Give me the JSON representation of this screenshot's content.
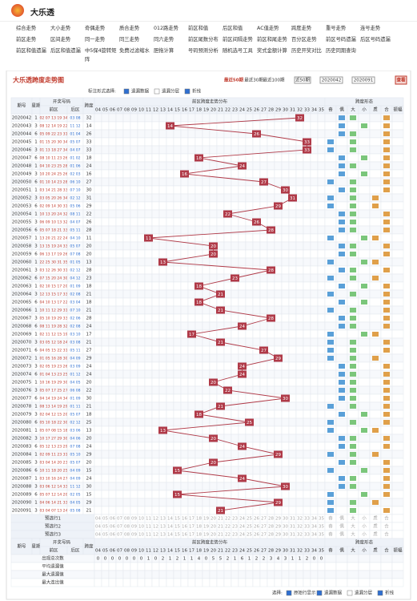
{
  "header": {
    "site": "大乐透"
  },
  "nav": [
    "综合走势",
    "大小走势",
    "奇偶走势",
    "质合走势",
    "012路走势",
    "前区和值",
    "后区和值",
    "AC值走势",
    "跨度走势",
    "重号走势",
    "连号走势",
    "前区走势",
    "区间走势",
    "同一走势",
    "同三走势",
    "同六走势",
    "前区尾数分布",
    "前区间隔走势",
    "前区和尾走势",
    "百分区走势",
    "前区号码遗漏",
    "后区号码遗漏",
    "前区和值遗漏",
    "后区和值遗漏",
    "中5保4旋转矩阵",
    "免费过滤缩水",
    "胆拖计算",
    "号码预测分析",
    "随机选号工具",
    "奖式金额计算",
    "历史开奖对比",
    "历史同期查询"
  ],
  "panel": {
    "title": "大乐透跨度走势图",
    "ranges": [
      "最近50期",
      "最近30期",
      "最近100期"
    ],
    "select": "近50期",
    "from": "2020042",
    "to": "2020091",
    "button": "查看",
    "mark_label": "标注形式选择:",
    "options": [
      {
        "label": "遗漏数据",
        "checked": true
      },
      {
        "label": "遗漏分层",
        "checked": false
      },
      {
        "label": "折线",
        "checked": true
      }
    ]
  },
  "table": {
    "head": {
      "issue": "期号",
      "week": "星期",
      "numbers": "开奖号码",
      "front": "前区",
      "back": "后区",
      "span": "跨度",
      "dist": "前区跨度走势分布",
      "form": "跨度形态"
    },
    "columns": [
      "04",
      "05",
      "06",
      "07",
      "08",
      "09",
      "10",
      "11",
      "12",
      "13",
      "14",
      "15",
      "16",
      "17",
      "18",
      "19",
      "20",
      "21",
      "22",
      "23",
      "24",
      "25",
      "26",
      "27",
      "28",
      "29",
      "30",
      "31",
      "32",
      "33",
      "34",
      "35"
    ],
    "form_columns": [
      "奇",
      "偶",
      "大",
      "小",
      "质",
      "合",
      "振幅"
    ],
    "rows": [
      {
        "issue": "2020042",
        "week": "1",
        "front": "02 07 13 19 34",
        "back": "03 08",
        "span": 32
      },
      {
        "issue": "2020043",
        "week": "3",
        "front": "08 12 14 19 22",
        "back": "11 12",
        "span": 14
      },
      {
        "issue": "2020044",
        "week": "6",
        "front": "05 09 22 23 31",
        "back": "01 04",
        "span": 26
      },
      {
        "issue": "2020045",
        "week": "1",
        "front": "01 15 20 30 34",
        "back": "05 07",
        "span": 33
      },
      {
        "issue": "2020046",
        "week": "3",
        "front": "01 13 18 27 34",
        "back": "04 07",
        "span": 33
      },
      {
        "issue": "2020047",
        "week": "6",
        "front": "08 10 11 23 26",
        "back": "01 02",
        "span": 18
      },
      {
        "issue": "2020048",
        "week": "1",
        "front": "04 10 23 25 28",
        "back": "01 06",
        "span": 24
      },
      {
        "issue": "2020049",
        "week": "3",
        "front": "10 20 24 25 26",
        "back": "02 03",
        "span": 16
      },
      {
        "issue": "2020050",
        "week": "6",
        "front": "01 10 14 23 28",
        "back": "06 10",
        "span": 27
      },
      {
        "issue": "2020051",
        "week": "1",
        "front": "03 14 21 28 33",
        "back": "07 10",
        "span": 30
      },
      {
        "issue": "2020052",
        "week": "3",
        "front": "03 05 20 26 34",
        "back": "02 12",
        "span": 31
      },
      {
        "issue": "2020053",
        "week": "6",
        "front": "02 09 14 30 31",
        "back": "05 06",
        "span": 29
      },
      {
        "issue": "2020054",
        "week": "1",
        "front": "10 13 20 24 32",
        "back": "08 11",
        "span": 22
      },
      {
        "issue": "2020055",
        "week": "3",
        "front": "06 09 10 13 32",
        "back": "04 07",
        "span": 26
      },
      {
        "issue": "2020056",
        "week": "6",
        "front": "05 07 18 21 33",
        "back": "05 11",
        "span": 28
      },
      {
        "issue": "2020057",
        "week": "1",
        "front": "13 20 21 22 24",
        "back": "04 10",
        "span": 11
      },
      {
        "issue": "2020058",
        "week": "3",
        "front": "13 15 19 24 33",
        "back": "05 07",
        "span": 20
      },
      {
        "issue": "2020059",
        "week": "6",
        "front": "06 13 17 19 26",
        "back": "07 08",
        "span": 20
      },
      {
        "issue": "2020060",
        "week": "1",
        "front": "22 25 30 31 35",
        "back": "01 05",
        "span": 13
      },
      {
        "issue": "2020061",
        "week": "3",
        "front": "03 12 26 30 31",
        "back": "02 12",
        "span": 28
      },
      {
        "issue": "2020062",
        "week": "6",
        "front": "07 15 20 24 30",
        "back": "04 12",
        "span": 23
      },
      {
        "issue": "2020063",
        "week": "1",
        "front": "02 10 15 17 20",
        "back": "01 09",
        "span": 18
      },
      {
        "issue": "2020064",
        "week": "3",
        "front": "12 13 15 17 33",
        "back": "02 08",
        "span": 21
      },
      {
        "issue": "2020065",
        "week": "6",
        "front": "04 10 13 17 22",
        "back": "03 04",
        "span": 18
      },
      {
        "issue": "2020066",
        "week": "1",
        "front": "10 11 12 29 31",
        "back": "07 10",
        "span": 21
      },
      {
        "issue": "2020067",
        "week": "3",
        "front": "05 10 19 29 33",
        "back": "02 06",
        "span": 28
      },
      {
        "issue": "2020068",
        "week": "6",
        "front": "08 11 19 28 32",
        "back": "02 08",
        "span": 24
      },
      {
        "issue": "2020069",
        "week": "1",
        "front": "02 11 12 15 19",
        "back": "03 10",
        "span": 17
      },
      {
        "issue": "2020070",
        "week": "3",
        "front": "03 05 12 18 24",
        "back": "03 08",
        "span": 21
      },
      {
        "issue": "2020071",
        "week": "6",
        "front": "04 05 15 22 31",
        "back": "05 11",
        "span": 27
      },
      {
        "issue": "2020072",
        "week": "1",
        "front": "01 05 16 28 30",
        "back": "04 09",
        "span": 29
      },
      {
        "issue": "2020073",
        "week": "3",
        "front": "02 05 19 23 26",
        "back": "03 09",
        "span": 24
      },
      {
        "issue": "2020074",
        "week": "6",
        "front": "01 04 13 23 25",
        "back": "01 12",
        "span": 24
      },
      {
        "issue": "2020075",
        "week": "1",
        "front": "10 16 19 29 30",
        "back": "04 05",
        "span": 20
      },
      {
        "issue": "2020076",
        "week": "3",
        "front": "05 07 17 25 27",
        "back": "06 08",
        "span": 22
      },
      {
        "issue": "2020077",
        "week": "6",
        "front": "04 14 19 24 34",
        "back": "01 09",
        "span": 30
      },
      {
        "issue": "2020078",
        "week": "1",
        "front": "08 13 14 19 29",
        "back": "01 11",
        "span": 21
      },
      {
        "issue": "2020079",
        "week": "3",
        "front": "02 04 12 15 20",
        "back": "05 07",
        "span": 18
      },
      {
        "issue": "2020080",
        "week": "6",
        "front": "05 10 18 22 30",
        "back": "02 12",
        "span": 25
      },
      {
        "issue": "2020081",
        "week": "1",
        "front": "05 07 08 15 18",
        "back": "03 06",
        "span": 13
      },
      {
        "issue": "2020082",
        "week": "3",
        "front": "10 17 27 29 30",
        "back": "04 06",
        "span": 20
      },
      {
        "issue": "2020083",
        "week": "6",
        "front": "05 12 13 23 29",
        "back": "07 08",
        "span": 24
      },
      {
        "issue": "2020084",
        "week": "1",
        "front": "02 09 11 23 31",
        "back": "05 10",
        "span": 29
      },
      {
        "issue": "2020085",
        "week": "3",
        "front": "03 04 14 20 23",
        "back": "05 07",
        "span": 20
      },
      {
        "issue": "2020086",
        "week": "6",
        "front": "10 11 18 20 25",
        "back": "04 09",
        "span": 15
      },
      {
        "issue": "2020087",
        "week": "1",
        "front": "03 10 16 24 27",
        "back": "04 09",
        "span": 24
      },
      {
        "issue": "2020088",
        "week": "3",
        "front": "03 06 12 14 33",
        "back": "11 12",
        "span": 30
      },
      {
        "issue": "2020089",
        "week": "6",
        "front": "05 07 12 14 20",
        "back": "02 05",
        "span": 15
      },
      {
        "issue": "2020090",
        "week": "1",
        "front": "04 06 14 21 33",
        "back": "04 05",
        "span": 29
      },
      {
        "issue": "2020091",
        "week": "3",
        "front": "03 04 07 13 24",
        "back": "05 08",
        "span": 21
      }
    ],
    "preselect": [
      "预选行1",
      "预选行2",
      "预选行3"
    ],
    "stats": {
      "labels": [
        "出现总次数",
        "平均遗漏值",
        "最大遗漏值",
        "最大连出值"
      ],
      "counts": [
        0,
        0,
        0,
        0,
        0,
        0,
        0,
        1,
        0,
        2,
        1,
        2,
        1,
        1,
        4,
        0,
        5,
        5,
        2,
        1,
        6,
        1,
        2,
        2,
        3,
        4,
        3,
        1,
        1,
        2,
        0,
        0
      ]
    }
  },
  "footer": {
    "label": "选择:",
    "options": [
      {
        "label": "原始行显示",
        "checked": true
      },
      {
        "label": "遗漏数据",
        "checked": true
      },
      {
        "label": "遗漏分层",
        "checked": false
      },
      {
        "label": "折线",
        "checked": true
      }
    ]
  }
}
